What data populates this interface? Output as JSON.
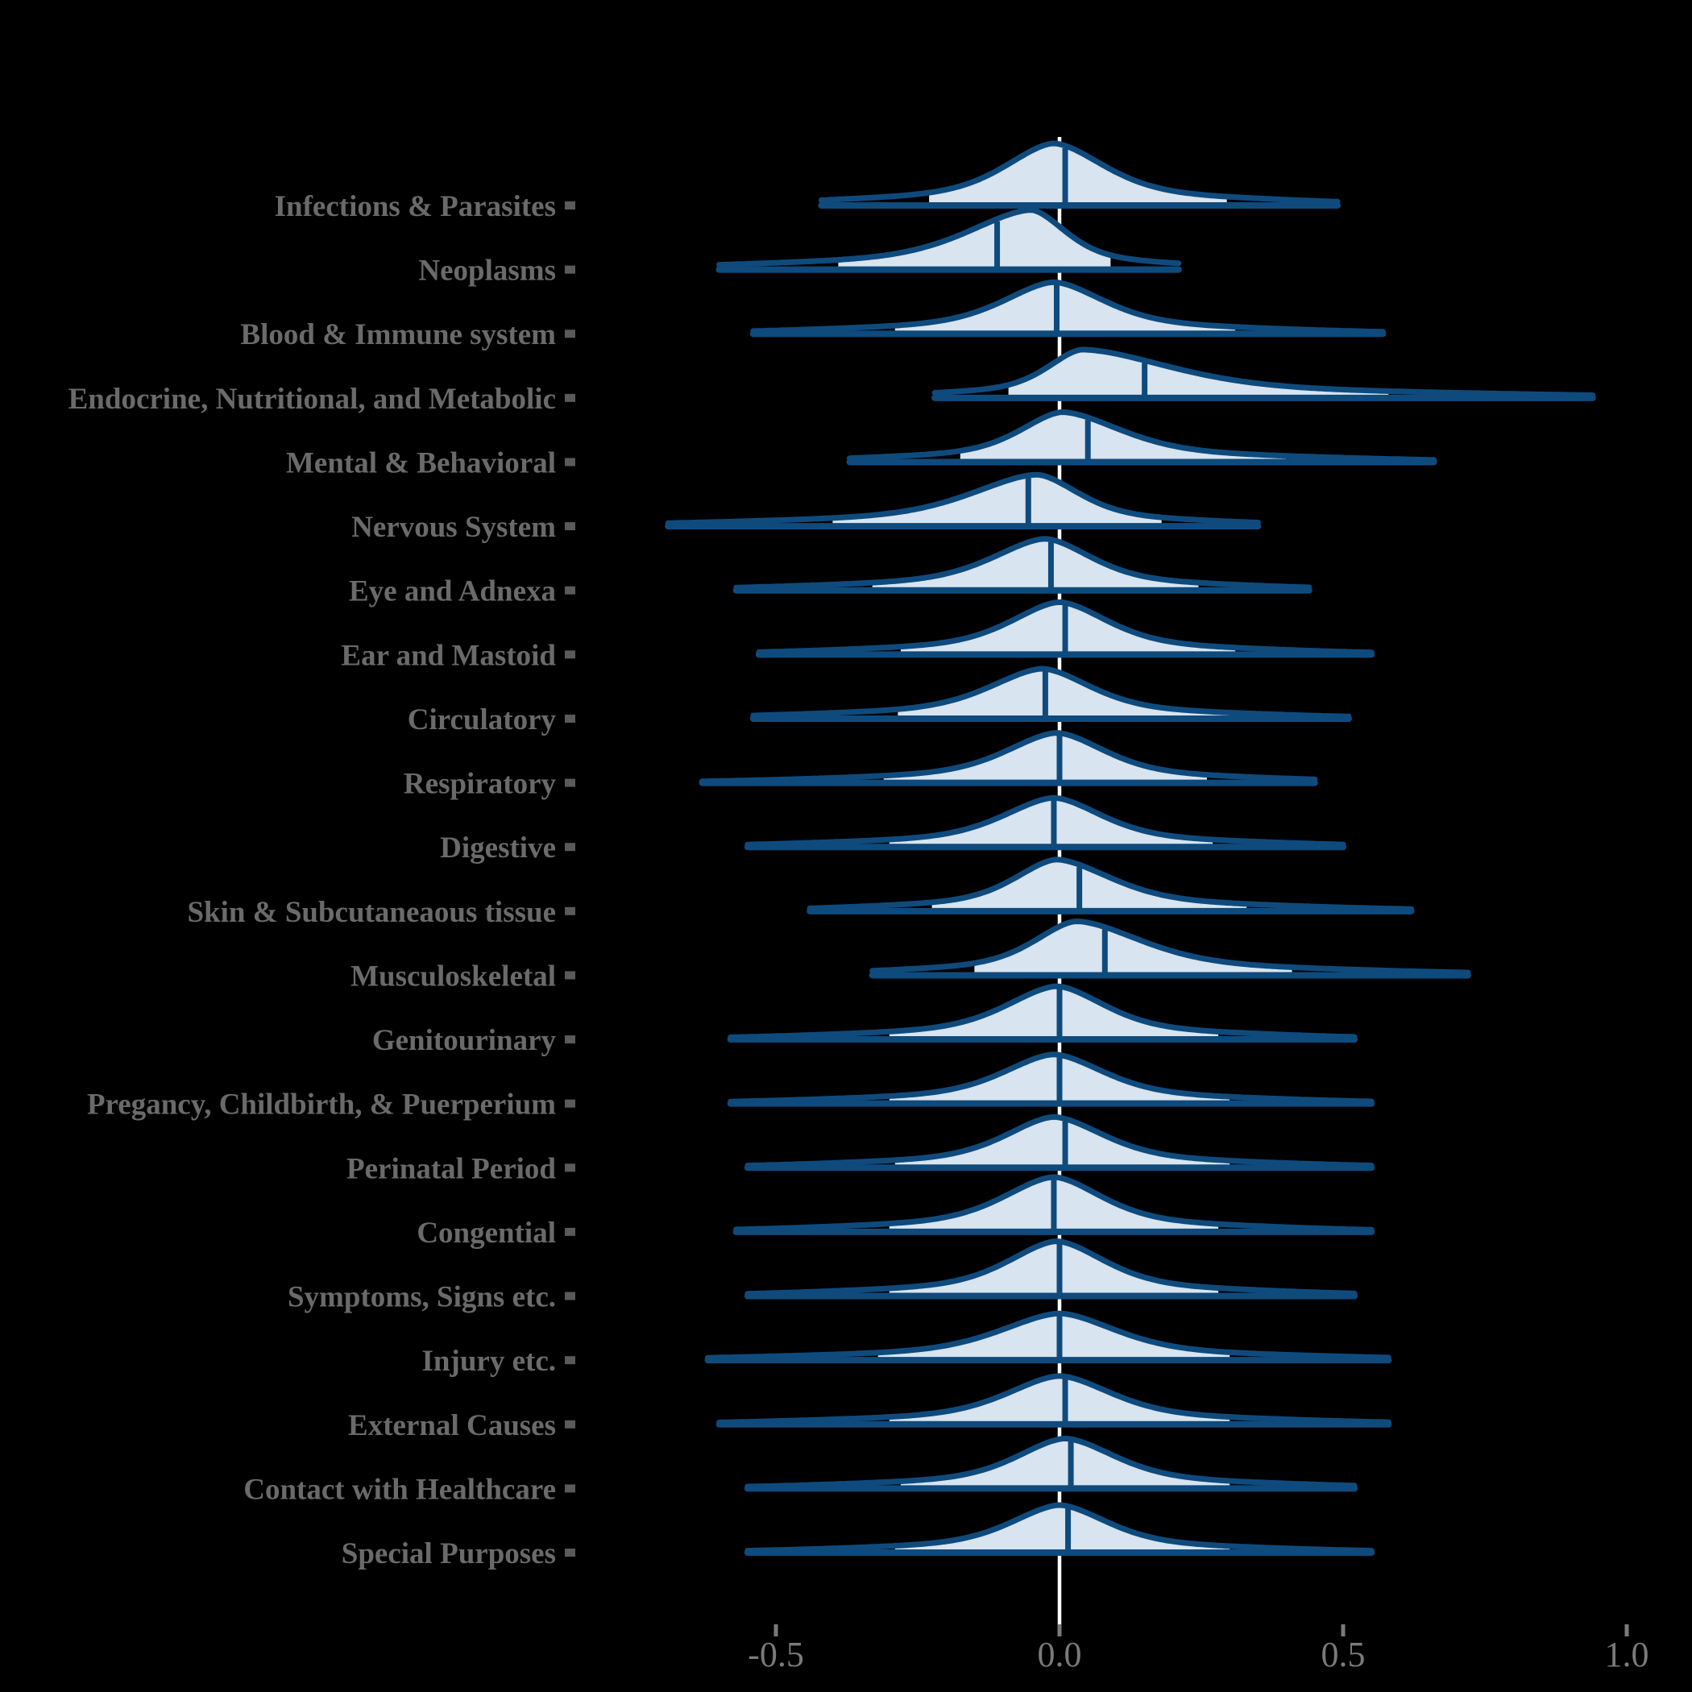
{
  "page": {
    "background": "#000000"
  },
  "chart_data": {
    "type": "ridgeline",
    "title": "",
    "xlabel": "",
    "ylabel": "",
    "legend": "none",
    "grid": "off",
    "x_axis": {
      "range": [
        -0.75,
        1.1
      ],
      "ticks": [
        {
          "value": -0.5,
          "label": "-0.5"
        },
        {
          "value": 0.0,
          "label": "0.0"
        },
        {
          "value": 0.5,
          "label": "0.5"
        },
        {
          "value": 1.0,
          "label": "1.0"
        }
      ]
    },
    "reference_line_x": 0.0,
    "colors": {
      "outline": "#0f4a7d",
      "fill": "#d8e4ef",
      "reference_line": "#ffffff",
      "category_label": "#6a6a6a",
      "axis_text": "#7a7a7a",
      "axis_tick": "#7a7a7a",
      "label_tick_square": "#5a5a5a"
    },
    "rows": [
      {
        "label": "Infections & Parasites",
        "median": 0.01,
        "mode": -0.01,
        "sigma_left": 0.115,
        "sigma_right": 0.12,
        "x_min": -0.42,
        "x_max": 0.49,
        "fill_lo": -0.23,
        "fill_hi": 0.295,
        "peak": 77
      },
      {
        "label": "Neoplasms",
        "median": -0.11,
        "mode": -0.05,
        "sigma_left": 0.15,
        "sigma_right": 0.082,
        "x_min": -0.6,
        "x_max": 0.21,
        "fill_lo": -0.39,
        "fill_hi": 0.09,
        "peak": 74
      },
      {
        "label": "Blood & Immune system",
        "median": -0.005,
        "mode": -0.01,
        "sigma_left": 0.12,
        "sigma_right": 0.12,
        "x_min": -0.54,
        "x_max": 0.57,
        "fill_lo": -0.29,
        "fill_hi": 0.31,
        "peak": 64
      },
      {
        "label": "Endocrine, Nutritional, and Metabolic",
        "median": 0.15,
        "mode": 0.04,
        "sigma_left": 0.082,
        "sigma_right": 0.21,
        "x_min": -0.22,
        "x_max": 0.94,
        "fill_lo": -0.09,
        "fill_hi": 0.58,
        "peak": 60
      },
      {
        "label": "Mental & Behavioral",
        "median": 0.05,
        "mode": 0.005,
        "sigma_left": 0.1,
        "sigma_right": 0.14,
        "x_min": -0.37,
        "x_max": 0.66,
        "fill_lo": -0.175,
        "fill_hi": 0.4,
        "peak": 62
      },
      {
        "label": "Nervous System",
        "median": -0.055,
        "mode": -0.04,
        "sigma_left": 0.155,
        "sigma_right": 0.1,
        "x_min": -0.69,
        "x_max": 0.35,
        "fill_lo": -0.4,
        "fill_hi": 0.18,
        "peak": 64
      },
      {
        "label": "Eye and Adnexa",
        "median": -0.015,
        "mode": -0.025,
        "sigma_left": 0.125,
        "sigma_right": 0.11,
        "x_min": -0.57,
        "x_max": 0.44,
        "fill_lo": -0.33,
        "fill_hi": 0.245,
        "peak": 64
      },
      {
        "label": "Ear and Mastoid",
        "median": 0.01,
        "mode": 0.0,
        "sigma_left": 0.115,
        "sigma_right": 0.115,
        "x_min": -0.53,
        "x_max": 0.55,
        "fill_lo": -0.28,
        "fill_hi": 0.31,
        "peak": 65
      },
      {
        "label": "Circulatory",
        "median": -0.025,
        "mode": -0.03,
        "sigma_left": 0.125,
        "sigma_right": 0.115,
        "x_min": -0.54,
        "x_max": 0.51,
        "fill_lo": -0.285,
        "fill_hi": 0.3,
        "peak": 62
      },
      {
        "label": "Respiratory",
        "median": 0.0,
        "mode": -0.005,
        "sigma_left": 0.12,
        "sigma_right": 0.115,
        "x_min": -0.63,
        "x_max": 0.45,
        "fill_lo": -0.31,
        "fill_hi": 0.26,
        "peak": 62
      },
      {
        "label": "Digestive",
        "median": -0.01,
        "mode": -0.01,
        "sigma_left": 0.12,
        "sigma_right": 0.115,
        "x_min": -0.55,
        "x_max": 0.5,
        "fill_lo": -0.3,
        "fill_hi": 0.27,
        "peak": 61
      },
      {
        "label": "Skin & Subcutaneaous tissue",
        "median": 0.035,
        "mode": -0.005,
        "sigma_left": 0.1,
        "sigma_right": 0.13,
        "x_min": -0.44,
        "x_max": 0.62,
        "fill_lo": -0.225,
        "fill_hi": 0.33,
        "peak": 64
      },
      {
        "label": "Musculoskeletal",
        "median": 0.08,
        "mode": 0.03,
        "sigma_left": 0.1,
        "sigma_right": 0.155,
        "x_min": -0.33,
        "x_max": 0.72,
        "fill_lo": -0.15,
        "fill_hi": 0.41,
        "peak": 67
      },
      {
        "label": "Genitourinary",
        "median": 0.0,
        "mode": -0.005,
        "sigma_left": 0.12,
        "sigma_right": 0.115,
        "x_min": -0.58,
        "x_max": 0.52,
        "fill_lo": -0.3,
        "fill_hi": 0.28,
        "peak": 66
      },
      {
        "label": "Pregancy, Childbirth, & Puerperium",
        "median": 0.0,
        "mode": -0.01,
        "sigma_left": 0.12,
        "sigma_right": 0.12,
        "x_min": -0.58,
        "x_max": 0.55,
        "fill_lo": -0.3,
        "fill_hi": 0.3,
        "peak": 61
      },
      {
        "label": "Perinatal Period",
        "median": 0.01,
        "mode": -0.01,
        "sigma_left": 0.115,
        "sigma_right": 0.12,
        "x_min": -0.55,
        "x_max": 0.55,
        "fill_lo": -0.29,
        "fill_hi": 0.3,
        "peak": 63
      },
      {
        "label": "Congential",
        "median": -0.01,
        "mode": -0.01,
        "sigma_left": 0.12,
        "sigma_right": 0.115,
        "x_min": -0.57,
        "x_max": 0.55,
        "fill_lo": -0.3,
        "fill_hi": 0.28,
        "peak": 68
      },
      {
        "label": "Symptoms, Signs etc.",
        "median": 0.0,
        "mode": -0.005,
        "sigma_left": 0.115,
        "sigma_right": 0.115,
        "x_min": -0.55,
        "x_max": 0.52,
        "fill_lo": -0.3,
        "fill_hi": 0.28,
        "peak": 68
      },
      {
        "label": "Injury etc.",
        "median": 0.0,
        "mode": 0.0,
        "sigma_left": 0.14,
        "sigma_right": 0.135,
        "x_min": -0.62,
        "x_max": 0.58,
        "fill_lo": -0.32,
        "fill_hi": 0.3,
        "peak": 58
      },
      {
        "label": "External Causes",
        "median": 0.01,
        "mode": 0.0,
        "sigma_left": 0.125,
        "sigma_right": 0.125,
        "x_min": -0.6,
        "x_max": 0.58,
        "fill_lo": -0.3,
        "fill_hi": 0.3,
        "peak": 60
      },
      {
        "label": "Contact with Healthcare",
        "median": 0.02,
        "mode": 0.01,
        "sigma_left": 0.115,
        "sigma_right": 0.12,
        "x_min": -0.55,
        "x_max": 0.52,
        "fill_lo": -0.28,
        "fill_hi": 0.3,
        "peak": 62
      },
      {
        "label": "Special Purposes",
        "median": 0.015,
        "mode": 0.0,
        "sigma_left": 0.115,
        "sigma_right": 0.115,
        "x_min": -0.55,
        "x_max": 0.55,
        "fill_lo": -0.29,
        "fill_hi": 0.3,
        "peak": 59
      }
    ]
  }
}
